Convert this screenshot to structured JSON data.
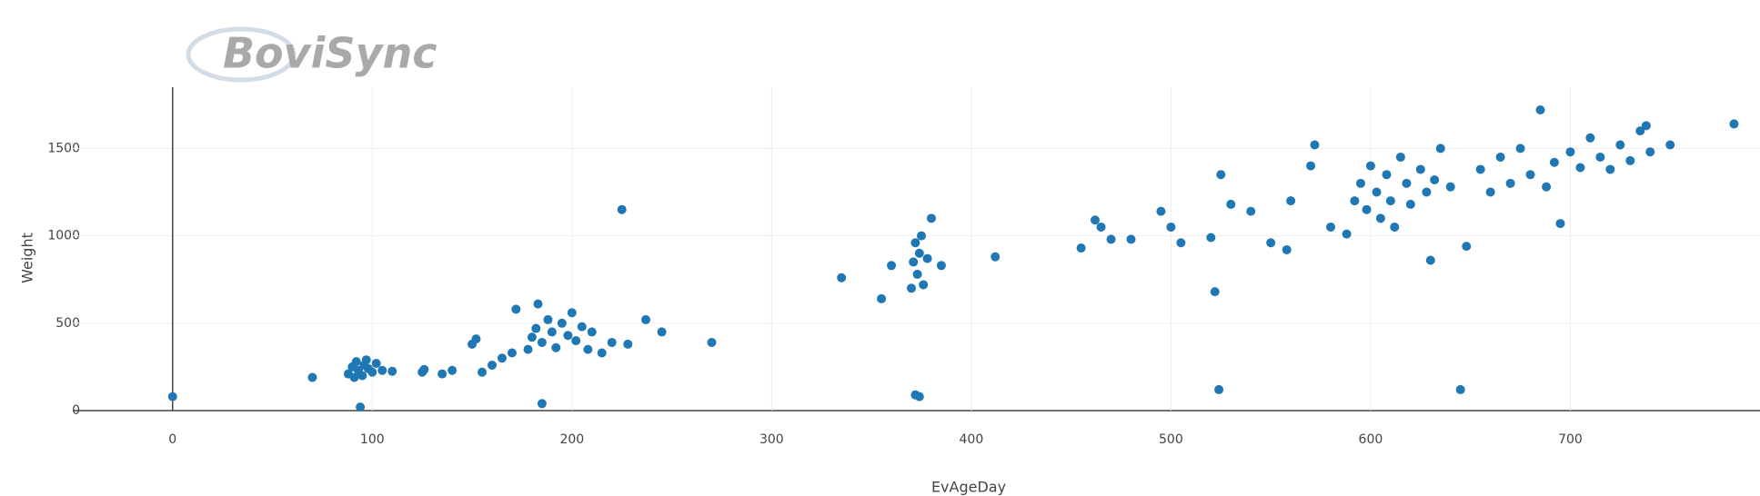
{
  "logo": "BoviSync",
  "chart_data": {
    "type": "scatter",
    "x_label": "EvAgeDay",
    "y_label": "Weight",
    "x": [
      0,
      70,
      88,
      90,
      92,
      93,
      95,
      96,
      98,
      100,
      102,
      91,
      97,
      94,
      105,
      110,
      125,
      126,
      135,
      140,
      150,
      152,
      155,
      160,
      165,
      170,
      172,
      178,
      180,
      182,
      185,
      188,
      190,
      192,
      195,
      198,
      200,
      202,
      205,
      208,
      183,
      210,
      215,
      220,
      185,
      225,
      228,
      237,
      245,
      270,
      335,
      355,
      360,
      370,
      371,
      372,
      373,
      374,
      375,
      376,
      378,
      372,
      374,
      380,
      385,
      412,
      455,
      462,
      465,
      470,
      480,
      495,
      500,
      505,
      520,
      522,
      524,
      525,
      530,
      540,
      550,
      558,
      560,
      570,
      572,
      580,
      588,
      592,
      595,
      598,
      600,
      603,
      605,
      608,
      610,
      612,
      615,
      618,
      620,
      625,
      628,
      630,
      632,
      635,
      640,
      645,
      648,
      655,
      660,
      665,
      670,
      675,
      680,
      685,
      688,
      692,
      695,
      700,
      705,
      710,
      715,
      720,
      725,
      730,
      735,
      738,
      740,
      750,
      782
    ],
    "series": [
      {
        "color": "#1f77b4",
        "values": [
          80,
          190,
          210,
          250,
          280,
          230,
          200,
          260,
          240,
          220,
          270,
          190,
          290,
          20,
          230,
          225,
          220,
          235,
          210,
          230,
          380,
          410,
          220,
          260,
          300,
          330,
          580,
          350,
          420,
          470,
          390,
          520,
          450,
          360,
          500,
          430,
          560,
          400,
          480,
          350,
          610,
          450,
          330,
          390,
          40,
          1150,
          380,
          520,
          450,
          390,
          760,
          640,
          830,
          700,
          850,
          960,
          780,
          900,
          1000,
          720,
          870,
          90,
          80,
          1100,
          830,
          880,
          930,
          1090,
          1050,
          980,
          980,
          1140,
          1050,
          960,
          990,
          680,
          120,
          1350,
          1180,
          1140,
          960,
          920,
          1200,
          1400,
          1520,
          1050,
          1010,
          1200,
          1300,
          1150,
          1400,
          1250,
          1100,
          1350,
          1200,
          1050,
          1450,
          1300,
          1180,
          1380,
          1250,
          860,
          1320,
          1500,
          1280,
          120,
          940,
          1380,
          1250,
          1450,
          1300,
          1500,
          1350,
          1720,
          1280,
          1420,
          1070,
          1480,
          1390,
          1560,
          1450,
          1380,
          1520,
          1430,
          1600,
          1630,
          1480,
          1520,
          1640
        ]
      }
    ],
    "xlim": [
      -50,
      795
    ],
    "ylim": [
      0,
      1850
    ],
    "xticks": [
      0,
      100,
      200,
      300,
      400,
      500,
      600,
      700
    ],
    "yticks": [
      0,
      500,
      1000,
      1500
    ],
    "grid": true
  }
}
